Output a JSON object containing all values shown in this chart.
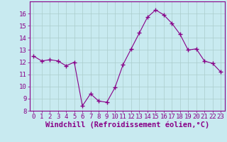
{
  "x": [
    0,
    1,
    2,
    3,
    4,
    5,
    6,
    7,
    8,
    9,
    10,
    11,
    12,
    13,
    14,
    15,
    16,
    17,
    18,
    19,
    20,
    21,
    22,
    23
  ],
  "y": [
    12.5,
    12.1,
    12.2,
    12.1,
    11.7,
    12.0,
    8.4,
    9.4,
    8.8,
    8.7,
    9.9,
    11.8,
    13.1,
    14.4,
    15.7,
    16.3,
    15.9,
    15.2,
    14.3,
    13.0,
    13.1,
    12.1,
    11.9,
    11.2
  ],
  "line_color": "#880088",
  "marker": "+",
  "marker_size": 5,
  "bg_color": "#c8eaf0",
  "grid_color": "#aacccc",
  "xlabel": "Windchill (Refroidissement éolien,°C)",
  "xlabel_color": "#880088",
  "tick_color": "#880088",
  "spine_color": "#880088",
  "ylim": [
    8,
    17
  ],
  "xlim": [
    -0.5,
    23.5
  ],
  "yticks": [
    8,
    9,
    10,
    11,
    12,
    13,
    14,
    15,
    16
  ],
  "xticks": [
    0,
    1,
    2,
    3,
    4,
    5,
    6,
    7,
    8,
    9,
    10,
    11,
    12,
    13,
    14,
    15,
    16,
    17,
    18,
    19,
    20,
    21,
    22,
    23
  ],
  "tick_fontsize": 6.5,
  "xlabel_fontsize": 7.5
}
